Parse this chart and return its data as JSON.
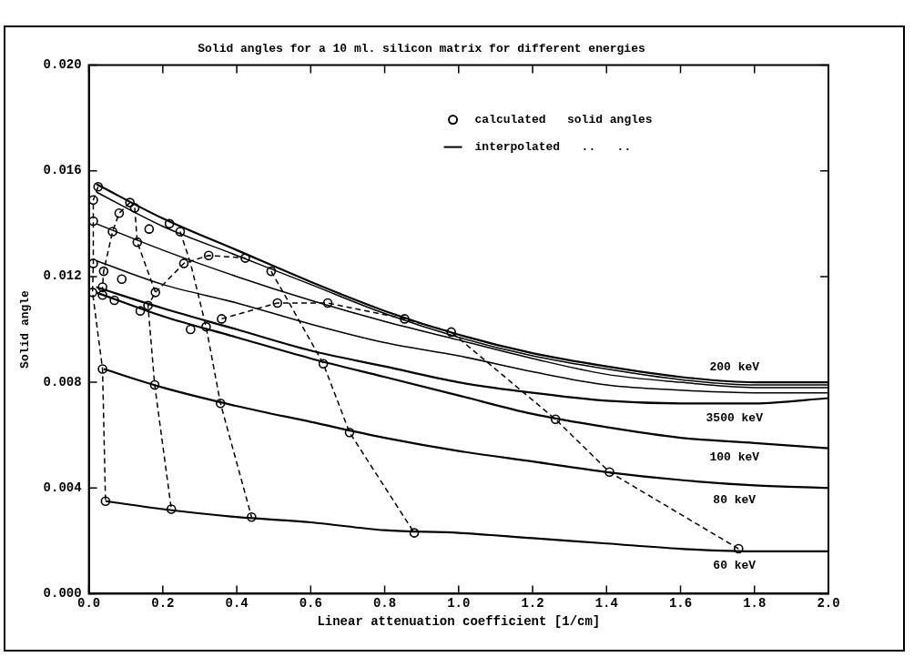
{
  "chart_data": {
    "type": "line",
    "title": "Solid angles for a 10 ml. silicon matrix for different energies",
    "xlabel": "Linear attenuation coefficient [1/cm]",
    "ylabel": "Solid angle",
    "xlim": [
      0,
      2
    ],
    "ylim": [
      0,
      0.02
    ],
    "xticks": [
      {
        "value": 0,
        "label": "0.0"
      },
      {
        "value": 0.2,
        "label": "0.2"
      },
      {
        "value": 0.4,
        "label": "0.4"
      },
      {
        "value": 0.6,
        "label": "0.6"
      },
      {
        "value": 0.8,
        "label": "0.8"
      },
      {
        "value": 1,
        "label": "1.0"
      },
      {
        "value": 1.2,
        "label": "1.2"
      },
      {
        "value": 1.4,
        "label": "1.4"
      },
      {
        "value": 1.6,
        "label": "1.6"
      },
      {
        "value": 1.8,
        "label": "1.8"
      },
      {
        "value": 2,
        "label": "2.0"
      }
    ],
    "yticks": [
      {
        "value": 0,
        "label": "0.000"
      },
      {
        "value": 0.004,
        "label": "0.004"
      },
      {
        "value": 0.008,
        "label": "0.008"
      },
      {
        "value": 0.012,
        "label": "0.012"
      },
      {
        "value": 0.016,
        "label": "0.016"
      },
      {
        "value": 0.02,
        "label": "0.020"
      }
    ],
    "grid": false,
    "legend": "top right",
    "series": [
      {
        "name": "200 keV",
        "line_style": "solid",
        "marker": "none",
        "color": "#000000",
        "x": [
          0.02,
          0.2,
          0.4,
          0.6,
          0.8,
          1,
          1.2,
          1.4,
          1.6,
          1.8,
          2
        ],
        "values": [
          0.0155,
          0.0142,
          0.013,
          0.0118,
          0.0107,
          0.0098,
          0.0091,
          0.0086,
          0.0082,
          0.008,
          0.008
        ]
      },
      {
        "line_style": "solid",
        "marker": "none",
        "color": "#000000",
        "x": [
          0.02,
          0.2,
          0.4,
          0.6,
          0.8,
          1,
          1.2,
          1.4,
          1.6,
          1.8,
          2
        ],
        "values": [
          0.0152,
          0.0139,
          0.0128,
          0.0117,
          0.0106,
          0.0097,
          0.009,
          0.0085,
          0.0081,
          0.0079,
          0.0079
        ]
      },
      {
        "line_style": "solid",
        "marker": "none",
        "color": "#000000",
        "x": [
          0.02,
          0.2,
          0.4,
          0.6,
          0.8,
          1,
          1.2,
          1.4,
          1.6,
          1.8,
          2
        ],
        "values": [
          0.014,
          0.013,
          0.012,
          0.0111,
          0.0103,
          0.0096,
          0.0089,
          0.0083,
          0.008,
          0.0078,
          0.0078
        ]
      },
      {
        "line_style": "solid",
        "marker": "none",
        "color": "#000000",
        "x": [
          0.02,
          0.2,
          0.4,
          0.6,
          0.8,
          1,
          1.2,
          1.4,
          1.6,
          1.8,
          2
        ],
        "values": [
          0.0126,
          0.0117,
          0.011,
          0.0102,
          0.0095,
          0.009,
          0.0084,
          0.0079,
          0.0077,
          0.0076,
          0.0076
        ]
      },
      {
        "name": "3500 keV",
        "line_style": "solid",
        "marker": "none",
        "color": "#000000",
        "x": [
          0.02,
          0.2,
          0.4,
          0.6,
          0.8,
          1,
          1.2,
          1.4,
          1.6,
          1.8,
          2
        ],
        "values": [
          0.0116,
          0.0108,
          0.01,
          0.0092,
          0.0086,
          0.008,
          0.0076,
          0.0073,
          0.0072,
          0.0072,
          0.0074
        ]
      },
      {
        "name": "100 keV",
        "line_style": "solid",
        "marker": "none",
        "color": "#000000",
        "x": [
          0.02,
          0.2,
          0.4,
          0.6,
          0.8,
          1,
          1.2,
          1.4,
          1.6,
          1.8,
          2
        ],
        "values": [
          0.0114,
          0.0105,
          0.0097,
          0.0089,
          0.0082,
          0.0075,
          0.0068,
          0.0063,
          0.0059,
          0.0057,
          0.0055
        ]
      },
      {
        "name": "80 keV",
        "line_style": "solid",
        "marker": "none",
        "color": "#000000",
        "x": [
          0.04,
          0.2,
          0.4,
          0.6,
          0.8,
          1,
          1.2,
          1.4,
          1.6,
          1.8,
          2
        ],
        "values": [
          0.0085,
          0.0078,
          0.0071,
          0.0065,
          0.0059,
          0.0054,
          0.005,
          0.0046,
          0.0043,
          0.0041,
          0.004
        ]
      },
      {
        "name": "60 keV",
        "line_style": "solid",
        "marker": "none",
        "color": "#000000",
        "x": [
          0.045,
          0.2,
          0.4,
          0.6,
          0.8,
          1,
          1.2,
          1.4,
          1.6,
          1.8,
          2
        ],
        "values": [
          0.0035,
          0.0032,
          0.0029,
          0.0027,
          0.0024,
          0.0023,
          0.0021,
          0.0019,
          0.0017,
          0.0016,
          0.0016
        ]
      },
      {
        "line_style": "dashed",
        "marker": "none",
        "color": "#000000",
        "x": [
          0.025,
          0.012,
          0.012,
          0.012,
          0.01,
          0.037,
          0.045
        ],
        "values": [
          0.0154,
          0.0149,
          0.0141,
          0.0125,
          0.0114,
          0.0085,
          0.0035
        ]
      },
      {
        "line_style": "dashed",
        "marker": "none",
        "color": "#000000",
        "x": [
          0.111,
          0.082,
          0.064,
          0.04,
          0.037,
          0.037
        ],
        "values": [
          0.0148,
          0.0144,
          0.0137,
          0.0122,
          0.0116,
          0.0113
        ]
      },
      {
        "line_style": "dashed",
        "marker": "none",
        "color": "#000000",
        "x": [
          0.124,
          0.131,
          0.18,
          0.16,
          0.178,
          0.223
        ],
        "values": [
          0.0146,
          0.0133,
          0.0114,
          0.0109,
          0.0079,
          0.0032
        ]
      },
      {
        "line_style": "dashed",
        "marker": "none",
        "color": "#000000",
        "x": [
          0.18,
          0.257,
          0.324,
          0.423
        ],
        "values": [
          0.0114,
          0.0125,
          0.0128,
          0.0127
        ]
      },
      {
        "line_style": "dashed",
        "marker": "none",
        "color": "#000000",
        "x": [
          0.247,
          0.275,
          0.317,
          0.356,
          0.44
        ],
        "values": [
          0.0137,
          0.0125,
          0.0101,
          0.0072,
          0.0029
        ]
      },
      {
        "line_style": "dashed",
        "marker": "none",
        "color": "#000000",
        "x": [
          0.493,
          0.55,
          0.634,
          0.705,
          0.88
        ],
        "values": [
          0.0122,
          0.0108,
          0.0087,
          0.0061,
          0.0023
        ]
      },
      {
        "line_style": "dashed",
        "marker": "none",
        "color": "#000000",
        "x": [
          0.359,
          0.51,
          0.646,
          0.854,
          0.98,
          1.262,
          1.408,
          1.757
        ],
        "values": [
          0.0104,
          0.011,
          0.011,
          0.0104,
          0.0099,
          0.0066,
          0.0046,
          0.0017
        ]
      },
      {
        "name": "calculated   solid angles",
        "type": "scatter",
        "marker": "circle",
        "color": "#000000",
        "x": [
          0.025,
          0.111,
          0.124,
          0.082,
          0.218,
          0.247,
          0.163,
          0.064,
          0.131,
          0.423,
          0.493,
          0.324,
          0.257,
          0.012,
          0.012,
          0.012,
          0.04,
          0.089,
          0.18,
          0.01,
          0.037,
          0.037,
          0.069,
          0.139,
          0.16,
          0.275,
          0.317,
          0.359,
          0.51,
          0.646,
          0.854,
          0.98,
          0.634,
          1.262,
          0.037,
          0.178,
          0.356,
          0.705,
          1.408,
          0.045,
          0.223,
          0.44,
          0.88,
          1.757
        ],
        "values": [
          0.0154,
          0.0148,
          0.0146,
          0.0144,
          0.014,
          0.0137,
          0.0138,
          0.0137,
          0.0133,
          0.0127,
          0.0122,
          0.0128,
          0.0125,
          0.0125,
          0.0141,
          0.0149,
          0.0122,
          0.0119,
          0.0114,
          0.0114,
          0.0116,
          0.0113,
          0.0111,
          0.0107,
          0.0109,
          0.01,
          0.0101,
          0.0104,
          0.011,
          0.011,
          0.0104,
          0.0099,
          0.0087,
          0.0066,
          0.0085,
          0.0079,
          0.0072,
          0.0061,
          0.0046,
          0.0035,
          0.0032,
          0.0029,
          0.0023,
          0.0017
        ]
      }
    ],
    "annotations": [
      "interpolated   ..   .."
    ]
  }
}
